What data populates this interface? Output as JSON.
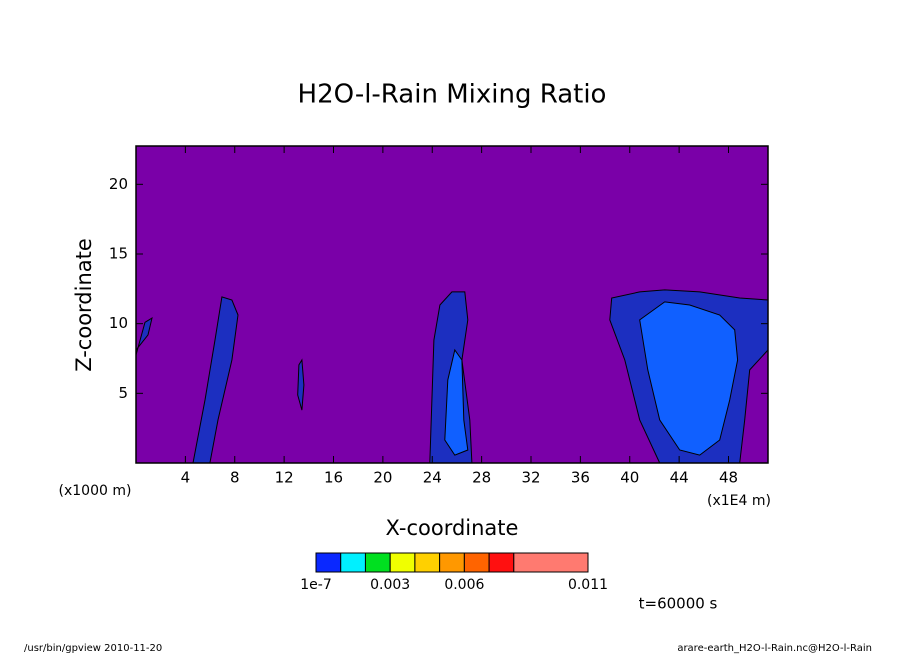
{
  "chart_data": {
    "type": "contour",
    "title": "H2O-l-Rain Mixing Ratio",
    "x_label": "X-coordinate",
    "y_label": "Z-coordinate",
    "x_unit_left": "(x1000 m)",
    "x_unit_right": "(x1E4 m)",
    "time_label": "t=60000 s",
    "footer_left": "/usr/bin/gpview  2010-11-20",
    "footer_right": "arare-earth_H2O-l-Rain.nc@H2O-l-Rain",
    "xlim": [
      0,
      51.2
    ],
    "ylim": [
      0,
      22.75
    ],
    "xticks": [
      4,
      8,
      12,
      16,
      20,
      24,
      28,
      32,
      36,
      40,
      44,
      48
    ],
    "yticks": [
      5,
      10,
      15,
      20
    ],
    "background_color": "#7a00a8",
    "regions": [
      {
        "color": "#1c2fc0",
        "x": [
          0,
          0.73,
          1.3,
          0.97,
          0
        ],
        "y": [
          7.75,
          10.1,
          10.4,
          9.19,
          8.1
        ]
      },
      {
        "color": "#1c2fc0",
        "x": [
          4.62,
          5.59,
          6.4,
          6.96,
          7.77,
          8.26,
          7.77,
          6.64,
          5.99
        ],
        "y": [
          0,
          4.52,
          8.83,
          11.92,
          11.7,
          10.62,
          7.39,
          3.09,
          0
        ]
      },
      {
        "color": "#1c2fc0",
        "x": [
          13.2,
          13.44,
          13.6,
          13.44,
          13.1
        ],
        "y": [
          7.04,
          7.39,
          5.6,
          3.8,
          4.88
        ]
      },
      {
        "color": "#1c2fc0",
        "x": [
          23.8,
          23.97,
          24.13,
          24.62,
          25.59,
          26.64,
          26.88,
          26.4,
          27.04,
          27.21
        ],
        "y": [
          0,
          4.52,
          8.83,
          11.34,
          12.28,
          12.28,
          10.27,
          7.39,
          3.09,
          0
        ]
      },
      {
        "color": "#1060ff",
        "x": [
          25.02,
          25.26,
          25.83,
          26.4,
          26.56,
          26.88,
          25.83
        ],
        "y": [
          1.65,
          5.96,
          8.11,
          7.39,
          3.09,
          0.93,
          0.57
        ]
      },
      {
        "color": "#1c2fc0",
        "x": [
          38.38,
          38.54,
          40.81,
          42.83,
          45.67,
          48.91,
          51.2,
          51.2,
          49.72,
          49.31,
          48.91,
          42.43,
          40.81,
          39.6
        ],
        "y": [
          10.27,
          11.84,
          12.28,
          12.42,
          12.28,
          11.84,
          11.7,
          8.11,
          6.68,
          3.09,
          0,
          0,
          3.09,
          7.39
        ]
      },
      {
        "color": "#1060ff",
        "x": [
          40.81,
          42.83,
          44.86,
          47.29,
          48.5,
          48.74,
          48.1,
          47.29,
          45.67,
          44.05,
          42.43,
          41.46
        ],
        "y": [
          10.27,
          11.56,
          11.34,
          10.62,
          9.55,
          7.39,
          4.52,
          1.65,
          0.57,
          0.93,
          3.09,
          6.68
        ]
      }
    ],
    "colorbar": {
      "levels": [
        1e-07,
        0.001,
        0.002,
        0.003,
        0.004,
        0.005,
        0.006,
        0.007,
        0.008,
        0.011
      ],
      "colors": [
        "#0a28ff",
        "#00f0ff",
        "#00e020",
        "#f0ff00",
        "#ffd000",
        "#ff9800",
        "#ff6400",
        "#ff1010",
        "#ff7a70"
      ],
      "ticks": [
        1e-07,
        0.003,
        0.006,
        0.011
      ]
    }
  }
}
